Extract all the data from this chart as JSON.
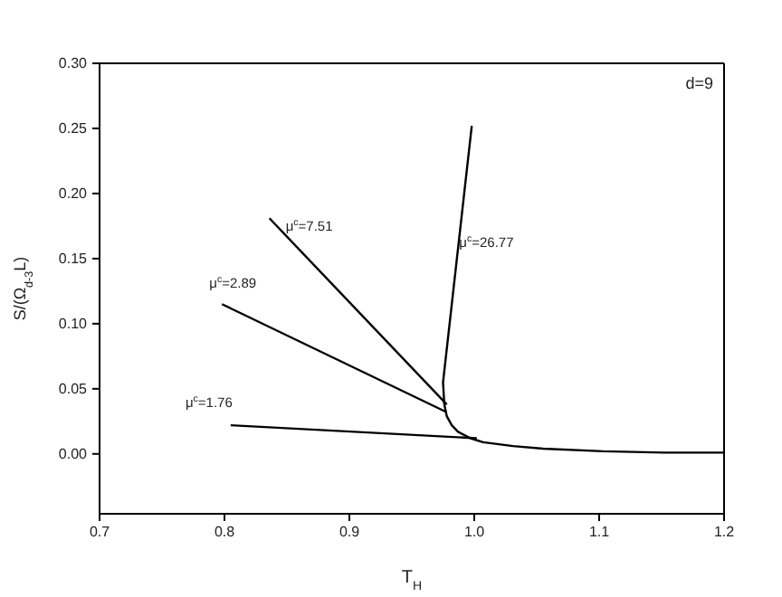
{
  "chart_data": {
    "type": "line",
    "xlabel": "T$_{H}$",
    "ylabel": "S/(Ω$_{d-3}$L)",
    "xlim": [
      0.7,
      1.2
    ],
    "ylim": [
      -0.046,
      0.3
    ],
    "xticks": [
      0.7,
      0.8,
      0.9,
      {
        "value": 1.0,
        "label": "1.0"
      },
      1.1,
      1.2
    ],
    "yticks": [
      {
        "value": 0,
        "label": "0.00"
      },
      0.05,
      {
        "value": 0.1,
        "label": "0.10"
      },
      0.15,
      {
        "value": 0.2,
        "label": "0.20"
      },
      0.25,
      {
        "value": 0.3,
        "label": "0.30"
      }
    ],
    "grid": false,
    "legend": false,
    "marker": "none",
    "line_style": "solid",
    "series": [
      {
        "name": "μ$^{c}$=26.77",
        "color": "#000000",
        "x": [
          1.2,
          1.152,
          1.103,
          1.055,
          1.031,
          1.007,
          0.997,
          0.987,
          0.982,
          0.978,
          0.976,
          0.975,
          0.998
        ],
        "values": [
          0.001,
          0.001,
          0.002,
          0.004,
          0.006,
          0.009,
          0.012,
          0.017,
          0.022,
          0.029,
          0.038,
          0.055,
          0.252
        ]
      },
      {
        "name": "μ$^{c}$=1.76",
        "color": "#000000",
        "x": [
          0.805,
          1.002
        ],
        "values": [
          0.022,
          0.012
        ]
      },
      {
        "name": "μ$^{c}$=2.89",
        "color": "#000000",
        "x": [
          0.798,
          0.978
        ],
        "values": [
          0.115,
          0.032
        ]
      },
      {
        "name": "μ$^{c}$=7.51",
        "color": "#000000",
        "x": [
          0.836,
          0.978
        ],
        "values": [
          0.181,
          0.038
        ]
      }
    ],
    "annotations": [
      "d=9"
    ]
  }
}
